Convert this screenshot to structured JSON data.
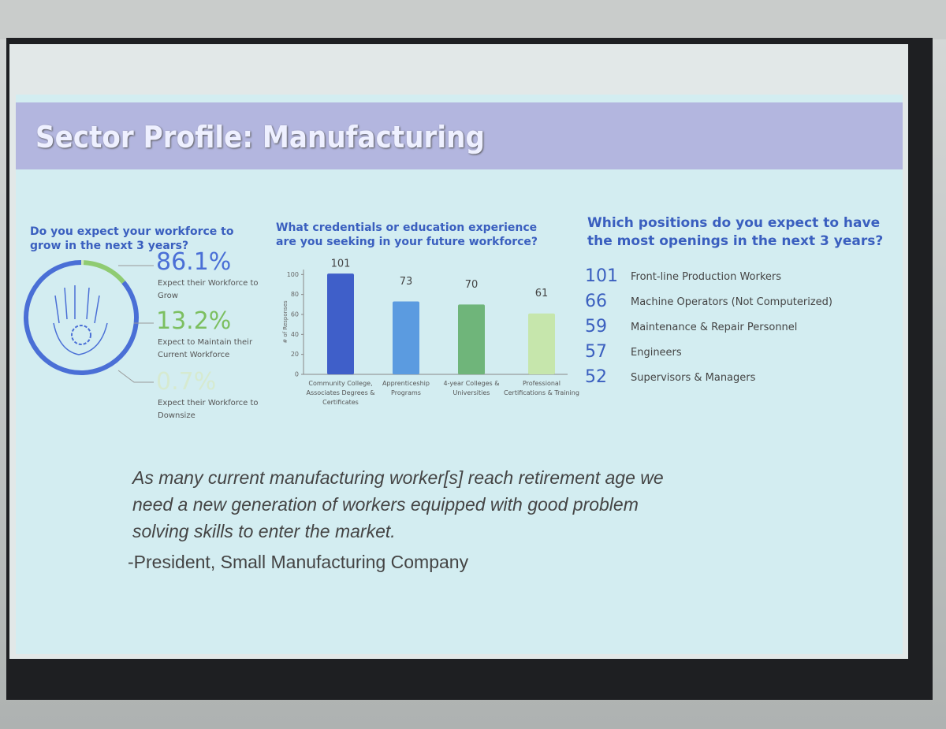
{
  "slide": {
    "title": "Sector Profile: Manufacturing"
  },
  "chart_data": [
    {
      "type": "donut",
      "title": "Do you expect your workforce to grow in the next 3 years?",
      "categories": [
        "Expect their Workforce to Grow",
        "Expect to Maintain their Current Workforce",
        "Expect their Workforce to Downsize"
      ],
      "values": [
        86.1,
        13.2,
        0.7
      ],
      "value_labels": [
        "86.1%",
        "13.2%",
        "0.7%"
      ],
      "colors": [
        "#4a6fd6",
        "#8fcb72",
        "#cfe8c0"
      ]
    },
    {
      "type": "bar",
      "title": "What credentials or education experience are you seeking in your future workforce?",
      "y_label": "# of Responses",
      "categories": [
        "Community College, Associates Degrees & Certificates",
        "Apprenticeship Programs",
        "4-year Colleges & Universities",
        "Professional Certifications & Training"
      ],
      "values": [
        101,
        73,
        70,
        61
      ],
      "colors": [
        "#3f5fc9",
        "#5b9be0",
        "#6fb57a",
        "#c6e6ac"
      ],
      "ylim": [
        0,
        105
      ],
      "yticks": [
        0,
        20,
        40,
        60,
        80,
        100
      ]
    }
  ],
  "positions": {
    "title": "Which positions do you expect to have the most openings in the next 3 years?",
    "items": [
      {
        "count": 101,
        "name": "Front-line Production Workers"
      },
      {
        "count": 66,
        "name": "Machine Operators (Not Computerized)"
      },
      {
        "count": 59,
        "name": "Maintenance & Repair Personnel"
      },
      {
        "count": 57,
        "name": "Engineers"
      },
      {
        "count": 52,
        "name": "Supervisors & Managers"
      }
    ]
  },
  "quote": {
    "lines": [
      "As many current manufacturing worker[s] reach retirement age we",
      "need a new generation of workers equipped with good problem",
      "solving skills to enter the market."
    ],
    "attribution": "-President, Small Manufacturing Company"
  }
}
